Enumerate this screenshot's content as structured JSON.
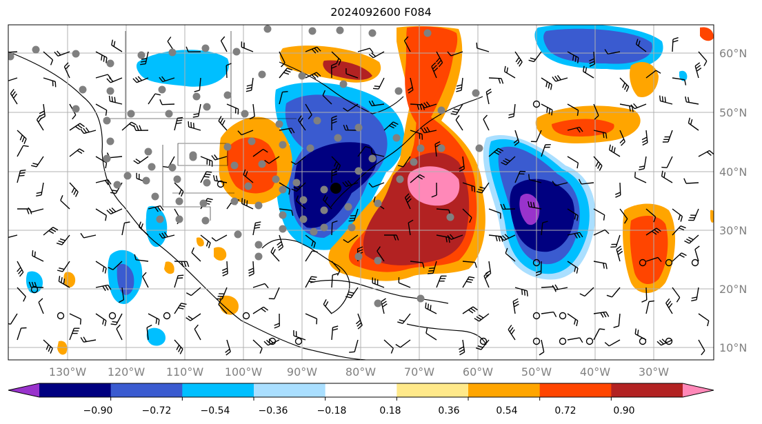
{
  "title": "2024092600 F084",
  "lon_labels": [
    "130°W",
    "120°W",
    "110°W",
    "100°W",
    "90°W",
    "80°W",
    "70°W",
    "60°W",
    "50°W",
    "40°W",
    "30°W"
  ],
  "lat_labels": [
    "60°N",
    "50°N",
    "40°N",
    "30°N",
    "20°N",
    "10°N"
  ],
  "colorbar": {
    "ticks": [
      "−0.90",
      "−0.72",
      "−0.54",
      "−0.36",
      "−0.18",
      "0.18",
      "0.36",
      "0.54",
      "0.72",
      "0.90"
    ],
    "colors": [
      "#9933cc",
      "#000080",
      "#3a5bd0",
      "#00bfff",
      "#aadfff",
      "#ffffff",
      "#ffe98a",
      "#ffa500",
      "#ff4500",
      "#b22222",
      "#ff88b8"
    ]
  },
  "palette": {
    "neg_strong": "#000080",
    "neg_mid": "#3a5bd0",
    "neg_light": "#00bfff",
    "neg_pale": "#aadfff",
    "neg_extreme": "#9933cc",
    "pos_pale": "#ffe98a",
    "pos_light": "#ffa500",
    "pos_mid": "#ff4500",
    "pos_strong": "#b22222",
    "pos_extreme": "#ff88b8",
    "marker_gray": "#808080",
    "grid": "#b0b0b0",
    "label_gray": "#808080"
  }
}
